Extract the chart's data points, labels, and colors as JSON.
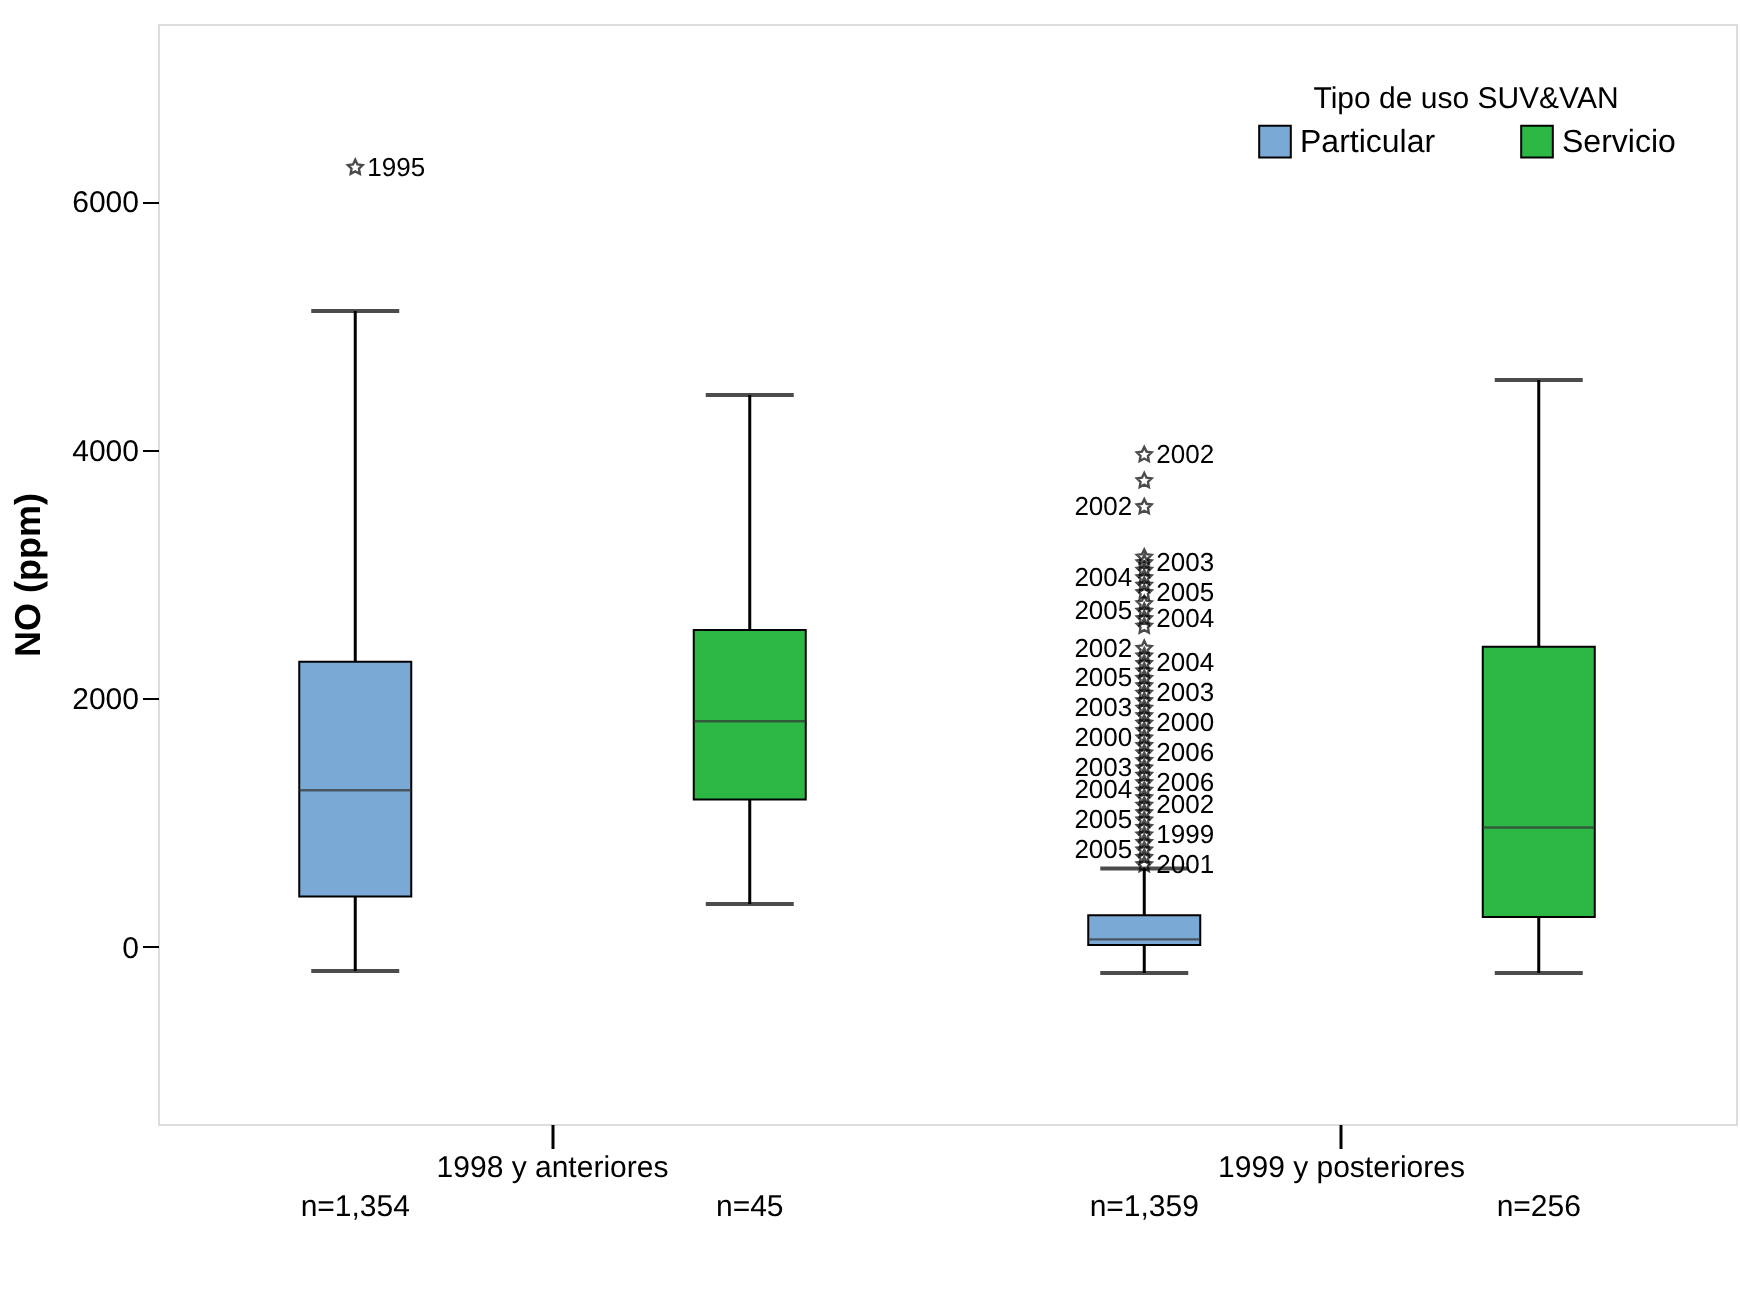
{
  "chart_data": {
    "type": "box",
    "ylabel": "NO (ppm)",
    "legend_title": "Tipo de uso SUV&VAN",
    "legend": "top right",
    "grid": false,
    "marker": "star",
    "categories": [
      "1998 y anteriores",
      "1999 y posteriores"
    ],
    "ylim": [
      -1425,
      7425
    ],
    "yticks": [
      0,
      2000,
      4000,
      6000
    ],
    "series": [
      {
        "name": "Particular",
        "color": "#7aa9d6",
        "boxes": [
          {
            "low": -195,
            "q1": 405,
            "median": 1260,
            "q3": 2295,
            "high": 5115,
            "outliers": [
              6270
            ]
          },
          {
            "low": -210,
            "q1": 15,
            "median": 60,
            "q3": 255,
            "high": 630,
            "outliers": [
              3960,
              3750,
              3540,
              3135,
              3090,
              3030,
              2970,
              2910,
              2850,
              2760,
              2700,
              2640,
              2580,
              2400,
              2340,
              2280,
              2220,
              2160,
              2100,
              2040,
              1980,
              1920,
              1860,
              1800,
              1740,
              1680,
              1620,
              1560,
              1500,
              1440,
              1380,
              1320,
              1260,
              1200,
              1140,
              1080,
              1020,
              960,
              900,
              840,
              780,
              720,
              660
            ]
          }
        ]
      },
      {
        "name": "Servicio",
        "color": "#2db845",
        "boxes": [
          {
            "low": 345,
            "q1": 1185,
            "median": 1815,
            "q3": 2550,
            "high": 4440
          },
          {
            "low": -210,
            "q1": 240,
            "median": 960,
            "q3": 2415,
            "high": 4560
          }
        ]
      }
    ],
    "annotations": [
      "1995",
      "2002",
      "2002",
      "2003",
      "2004",
      "2005",
      "2005",
      "2004",
      "2002",
      "2004",
      "2005",
      "2003",
      "2003",
      "2000",
      "2000",
      "2006",
      "2003",
      "2006",
      "2004",
      "2002",
      "2005",
      "1999",
      "2005",
      "2001",
      "n=1,354",
      "n=45",
      "n=1,359",
      "n=256"
    ]
  }
}
